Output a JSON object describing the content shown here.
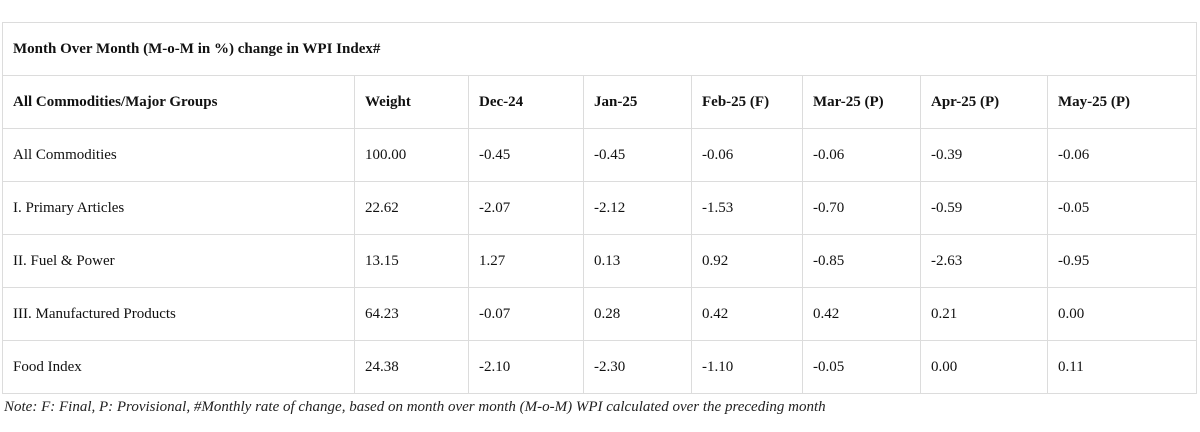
{
  "table": {
    "title": "Month Over Month (M-o-M in %) change in WPI Index#",
    "headers": [
      "All Commodities/Major Groups",
      "Weight",
      "Dec-24",
      "Jan-25",
      "Feb-25 (F)",
      "Mar-25 (P)",
      "Apr-25 (P)",
      "May-25 (P)"
    ],
    "rows": [
      [
        "All Commodities",
        "100.00",
        "-0.45",
        "-0.45",
        "-0.06",
        "-0.06",
        "-0.39",
        "-0.06"
      ],
      [
        "I. Primary Articles",
        "22.62",
        "-2.07",
        "-2.12",
        "-1.53",
        "-0.70",
        "-0.59",
        "-0.05"
      ],
      [
        "II. Fuel & Power",
        "13.15",
        "1.27",
        "0.13",
        "0.92",
        "-0.85",
        "-2.63",
        "-0.95"
      ],
      [
        "III. Manufactured Products",
        "64.23",
        "-0.07",
        "0.28",
        "0.42",
        "0.42",
        "0.21",
        "0.00"
      ],
      [
        "Food Index",
        "24.38",
        "-2.10",
        "-2.30",
        "-1.10",
        "-0.05",
        "0.00",
        "0.11"
      ]
    ]
  },
  "note": "Note: F: Final, P: Provisional, #Monthly rate of change, based on month over month (M-o-M) WPI calculated over the preceding month"
}
